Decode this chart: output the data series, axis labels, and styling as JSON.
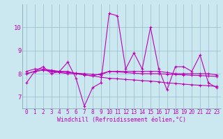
{
  "background_color": "#cbe8f0",
  "grid_color": "#99bbcc",
  "line_color": "#bb00bb",
  "x_values": [
    0,
    1,
    2,
    3,
    4,
    5,
    6,
    7,
    8,
    9,
    10,
    11,
    12,
    13,
    14,
    15,
    16,
    17,
    18,
    19,
    20,
    21,
    22,
    23
  ],
  "series1": [
    7.6,
    8.1,
    8.3,
    8.0,
    8.1,
    8.5,
    7.8,
    6.6,
    7.4,
    7.6,
    10.6,
    10.5,
    8.2,
    8.9,
    8.2,
    10.0,
    8.2,
    7.3,
    8.3,
    8.3,
    8.1,
    8.8,
    7.6,
    7.4
  ],
  "series2": [
    8.1,
    8.2,
    8.2,
    8.15,
    8.1,
    8.1,
    8.0,
    7.95,
    7.9,
    8.0,
    8.1,
    8.1,
    8.1,
    8.1,
    8.1,
    8.1,
    8.1,
    8.05,
    8.0,
    8.0,
    8.0,
    8.0,
    8.0,
    7.95
  ],
  "series3": [
    8.0,
    8.1,
    8.15,
    8.1,
    8.05,
    8.0,
    8.0,
    7.95,
    7.9,
    7.85,
    7.8,
    7.78,
    7.75,
    7.73,
    7.7,
    7.68,
    7.65,
    7.6,
    7.58,
    7.55,
    7.52,
    7.5,
    7.48,
    7.45
  ],
  "series4": [
    8.0,
    8.1,
    8.15,
    8.12,
    8.08,
    8.05,
    8.02,
    8.0,
    7.97,
    7.95,
    8.1,
    8.08,
    8.05,
    8.02,
    8.0,
    8.0,
    8.0,
    7.98,
    7.96,
    7.95,
    7.93,
    7.92,
    7.9,
    7.88
  ],
  "ylim": [
    6.5,
    11.0
  ],
  "yticks": [
    7,
    8,
    9,
    10
  ],
  "xlabel": "Windchill (Refroidissement éolien,°C)",
  "xlabel_fontsize": 6,
  "tick_fontsize": 5.5,
  "marker_size": 2.5,
  "linewidth": 0.8
}
